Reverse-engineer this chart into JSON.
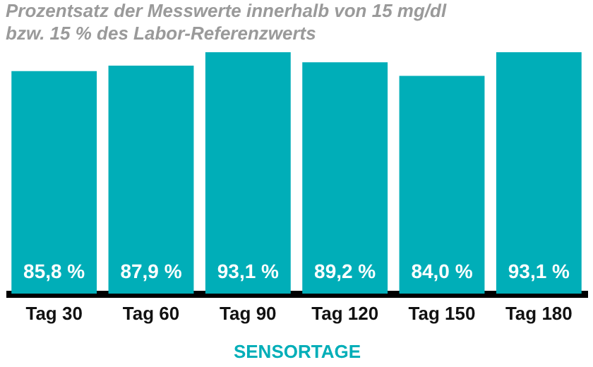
{
  "chart_data": {
    "type": "bar",
    "title": "Prozentsatz der Messwerte innerhalb von 15 mg/dl\nbzw. 15 % des Labor-Referenzwerts",
    "xlabel": "SENSORTAGE",
    "categories": [
      "Tag 30",
      "Tag 60",
      "Tag 90",
      "Tag 120",
      "Tag 150",
      "Tag 180"
    ],
    "values": [
      85.8,
      87.9,
      93.1,
      89.2,
      84.0,
      93.1
    ],
    "value_labels": [
      "85,8 %",
      "87,9 %",
      "93,1 %",
      "89,2 %",
      "84,0 %",
      "93,1 %"
    ],
    "color": "#00aeb8"
  }
}
